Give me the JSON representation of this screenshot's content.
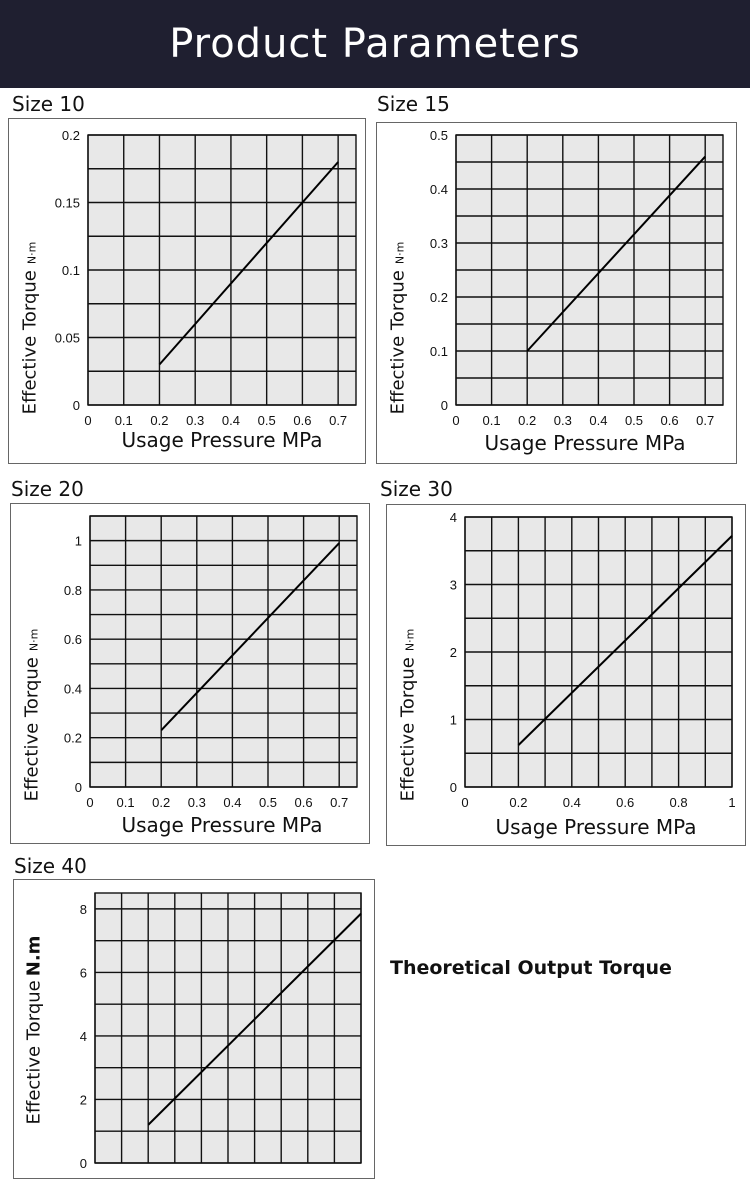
{
  "header": {
    "title": "Product Parameters",
    "background": "#1f1f30"
  },
  "note": "Theoretical Output Torque",
  "chart_data": [
    {
      "type": "line",
      "title": "Size 10",
      "xlabel": "Usage Pressure MPa",
      "ylabel": "Effective Torque",
      "yunit": "N·m",
      "xlim": [
        0,
        0.75
      ],
      "ylim": [
        0,
        0.2
      ],
      "x_grid_step": 0.1,
      "y_grid_step": 0.025,
      "grid": true,
      "xticks": [
        "0",
        "0.1",
        "0.2",
        "0.3",
        "0.4",
        "0.5",
        "0.6",
        "0.7"
      ],
      "yticks": [
        "0",
        "0.05",
        "0.1",
        "0.15",
        "0.2"
      ],
      "x": [
        0.2,
        0.7
      ],
      "y": [
        0.03,
        0.18
      ]
    },
    {
      "type": "line",
      "title": "Size 15",
      "xlabel": "Usage Pressure MPa",
      "ylabel": "Effective Torque",
      "yunit": "N·m",
      "xlim": [
        0,
        0.75
      ],
      "ylim": [
        0,
        0.5
      ],
      "x_grid_step": 0.1,
      "y_grid_step": 0.05,
      "grid": true,
      "xticks": [
        "0",
        "0.1",
        "0.2",
        "0.3",
        "0.4",
        "0.5",
        "0.6",
        "0.7"
      ],
      "yticks": [
        "0",
        "0.1",
        "0.2",
        "0.3",
        "0.4",
        "0.5"
      ],
      "x": [
        0.2,
        0.7
      ],
      "y": [
        0.1,
        0.46
      ]
    },
    {
      "type": "line",
      "title": "Size 20",
      "xlabel": "Usage Pressure MPa",
      "ylabel": "Effective Torque",
      "yunit": "N·m",
      "xlim": [
        0,
        0.75
      ],
      "ylim": [
        0,
        1.1
      ],
      "x_grid_step": 0.1,
      "y_grid_step": 0.1,
      "grid": true,
      "xticks": [
        "0",
        "0.1",
        "0.2",
        "0.3",
        "0.4",
        "0.5",
        "0.6",
        "0.7"
      ],
      "yticks": [
        "0",
        "0.2",
        "0.4",
        "0.6",
        "0.8",
        "1"
      ],
      "x": [
        0.2,
        0.7
      ],
      "y": [
        0.23,
        0.99
      ]
    },
    {
      "type": "line",
      "title": "Size 30",
      "xlabel": "Usage Pressure MPa",
      "ylabel": "Effective Torque",
      "yunit": "N·m",
      "xlim": [
        0,
        1
      ],
      "ylim": [
        0,
        4
      ],
      "x_grid_step": 0.1,
      "y_grid_step": 0.5,
      "grid": true,
      "xticks": [
        "0",
        "0.2",
        "0.4",
        "0.6",
        "0.8",
        "1"
      ],
      "yticks": [
        "0",
        "1",
        "2",
        "3",
        "4"
      ],
      "x": [
        0.2,
        1.0
      ],
      "y": [
        0.62,
        3.72
      ]
    },
    {
      "type": "line",
      "title": "Size 40",
      "xlabel": "",
      "ylabel": "Effective Torque",
      "yunit": "N.m",
      "xlim": [
        0,
        1
      ],
      "ylim": [
        0,
        8.5
      ],
      "x_grid_step": 0.1,
      "y_grid_step": 1,
      "grid": true,
      "xticks": [],
      "yticks": [
        "0",
        "2",
        "4",
        "6",
        "8"
      ],
      "x": [
        0.2,
        1.0
      ],
      "y": [
        1.2,
        7.85
      ]
    }
  ]
}
